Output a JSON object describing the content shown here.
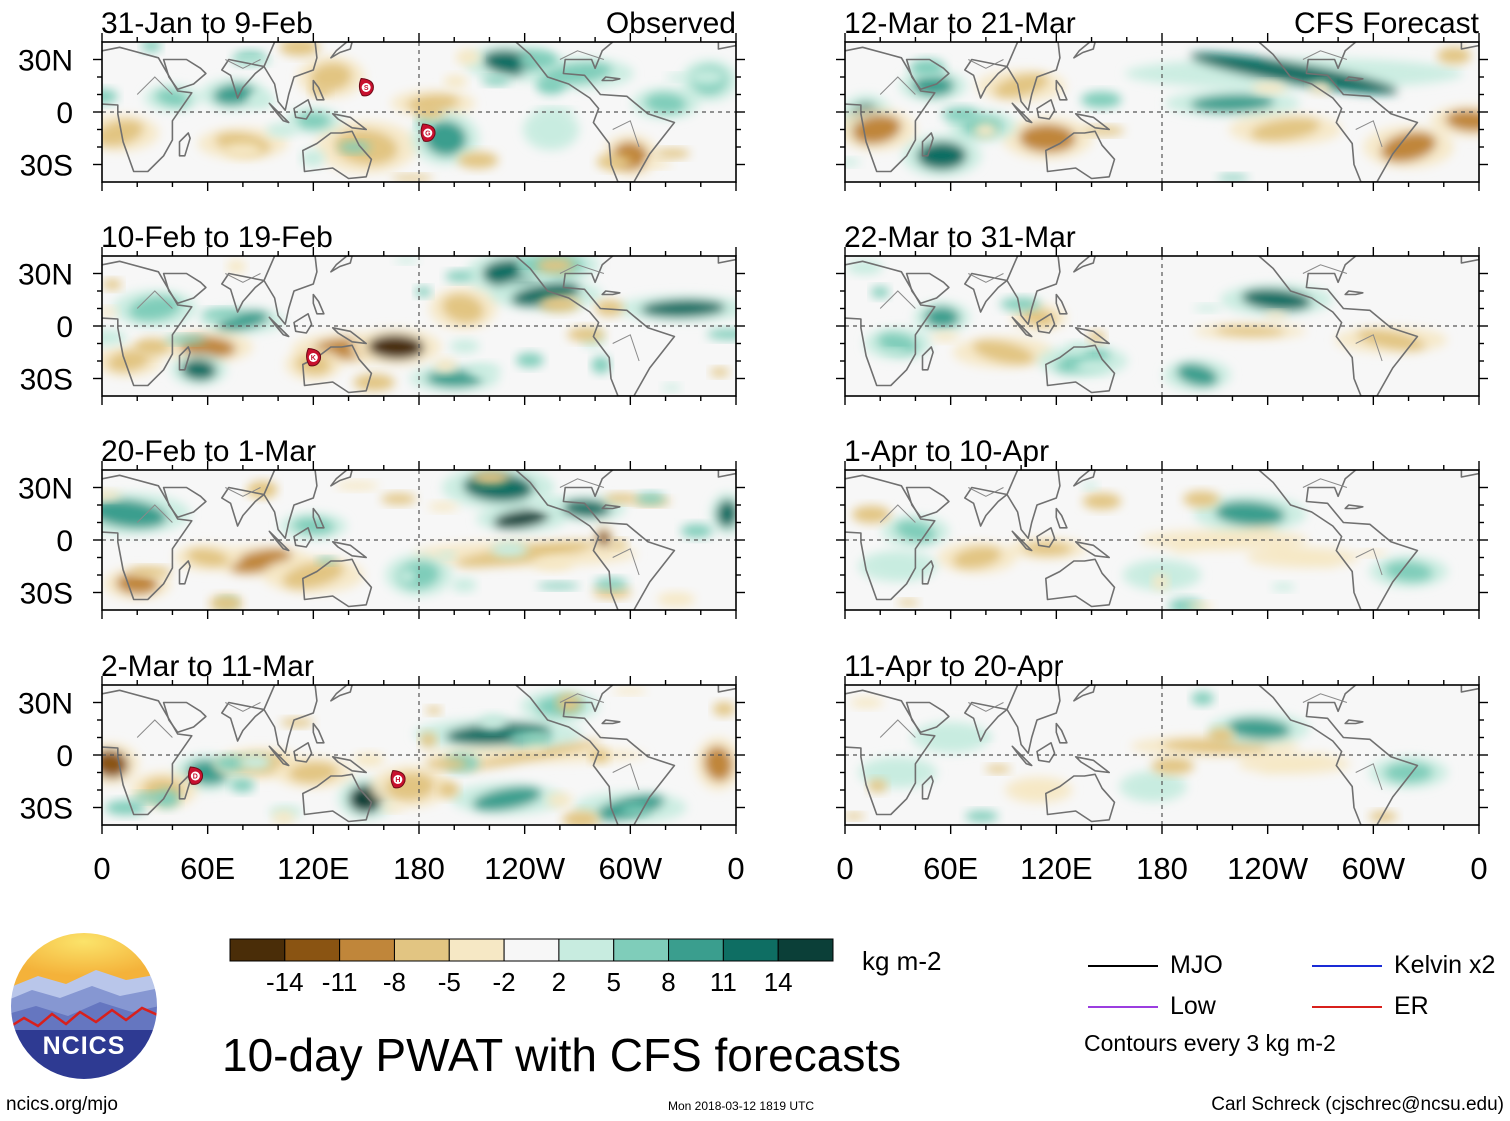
{
  "chart_data": {
    "type": "heatmap",
    "title": "10-day PWAT with CFS forecasts",
    "variable": "PWAT anomaly",
    "units": "kg m-2",
    "columns": [
      {
        "label": "Observed",
        "periods": [
          "31-Jan to 9-Feb",
          "10-Feb to 19-Feb",
          "20-Feb to 1-Mar",
          "2-Mar to 11-Mar"
        ]
      },
      {
        "label": "CFS Forecast",
        "periods": [
          "12-Mar to 21-Mar",
          "22-Mar to 31-Mar",
          "1-Apr to 10-Apr",
          "11-Apr to 20-Apr"
        ]
      }
    ],
    "x_ticks": [
      "0",
      "60E",
      "120E",
      "180",
      "120W",
      "60W",
      "0"
    ],
    "y_ticks": [
      "30N",
      "0",
      "30S"
    ],
    "colorbar": {
      "ticks": [
        "-14",
        "-11",
        "-8",
        "-5",
        "-2",
        "2",
        "5",
        "8",
        "11",
        "14"
      ],
      "colors": [
        "#4a2d08",
        "#8a5412",
        "#c0863a",
        "#e2c582",
        "#f6e8c5",
        "#f7f7f7",
        "#c8ece0",
        "#7fcdba",
        "#3a9e8e",
        "#0e6e63",
        "#0b3f38"
      ]
    },
    "storm_markers": [
      {
        "panel": 0,
        "letter": "S"
      },
      {
        "panel": 0,
        "letter": "G"
      },
      {
        "panel": 1,
        "letter": "K"
      },
      {
        "panel": 3,
        "letter": "D"
      },
      {
        "panel": 3,
        "letter": "H"
      }
    ],
    "legend": [
      {
        "label": "MJO",
        "color": "#000000"
      },
      {
        "label": "Kelvin x2",
        "color": "#1a2bd6"
      },
      {
        "label": "Low",
        "color": "#9b3ee0"
      },
      {
        "label": "ER",
        "color": "#d8201c"
      }
    ],
    "contour_note": "Contours every 3 kg m-2"
  },
  "logo": {
    "text": "NCICS"
  },
  "footer": {
    "site": "ncics.org/mjo",
    "timestamp": "Mon 2018-03-12 1819 UTC",
    "author": "Carl Schreck (cjschrec@ncsu.edu)"
  }
}
